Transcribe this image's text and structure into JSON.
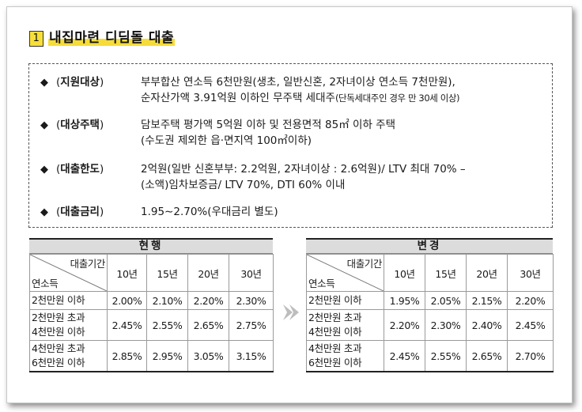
{
  "title": {
    "number": "1",
    "text": "내집마련 디딤돌 대출"
  },
  "info": {
    "bullet": "◆",
    "items": [
      {
        "label": "지원대상",
        "line1": "부부합산 연소득 6천만원(생초, 일반신혼, 2자녀이상 연소득 7천만원),",
        "line2_main": "순자산가액 3.91억원 이하인 무주택 세대주",
        "line2_small": "(단독세대주인 경우 만 30세 이상)"
      },
      {
        "label": "대상주택",
        "line1": "담보주택 평가액 5억원 이하 및 전용면적 85㎡ 이하 주택",
        "line2": "(수도권 제외한 읍·면지역 100㎡이하)"
      },
      {
        "label": "대출한도",
        "line1": "2억원(일반 신혼부부: 2.2억원, 2자녀이상 : 2.6억원)/ LTV 최대 70% –",
        "line2": "(소액)임차보증금/ LTV 70%, DTI 60% 이내"
      },
      {
        "label": "대출금리",
        "line1": "1.95∼2.70%(우대금리 별도)"
      }
    ]
  },
  "tables": [
    {
      "heading": "현행",
      "corner_top": "대출기간",
      "corner_bottom": "연소득",
      "periods": [
        "10년",
        "15년",
        "20년",
        "30년"
      ],
      "rows": [
        {
          "label_lines": [
            "2천만원 이하"
          ],
          "rates": [
            "2.00%",
            "2.10%",
            "2.20%",
            "2.30%"
          ]
        },
        {
          "label_lines": [
            "2천만원 초과",
            "4천만원 이하"
          ],
          "rates": [
            "2.45%",
            "2.55%",
            "2.65%",
            "2.75%"
          ]
        },
        {
          "label_lines": [
            "4천만원 초과",
            "6천만원 이하"
          ],
          "rates": [
            "2.85%",
            "2.95%",
            "3.05%",
            "3.15%"
          ]
        }
      ]
    },
    {
      "heading": "변경",
      "corner_top": "대출기간",
      "corner_bottom": "연소득",
      "periods": [
        "10년",
        "15년",
        "20년",
        "30년"
      ],
      "rows": [
        {
          "label_lines": [
            "2천만원 이하"
          ],
          "rates": [
            "1.95%",
            "2.05%",
            "2.15%",
            "2.20%"
          ]
        },
        {
          "label_lines": [
            "2천만원 초과",
            "4천만원 이하"
          ],
          "rates": [
            "2.20%",
            "2.30%",
            "2.40%",
            "2.45%"
          ]
        },
        {
          "label_lines": [
            "4천만원 초과",
            "6천만원 이하"
          ],
          "rates": [
            "2.45%",
            "2.55%",
            "2.65%",
            "2.70%"
          ]
        }
      ]
    }
  ],
  "arrow_icon": "chevron-right-arrow-icon"
}
